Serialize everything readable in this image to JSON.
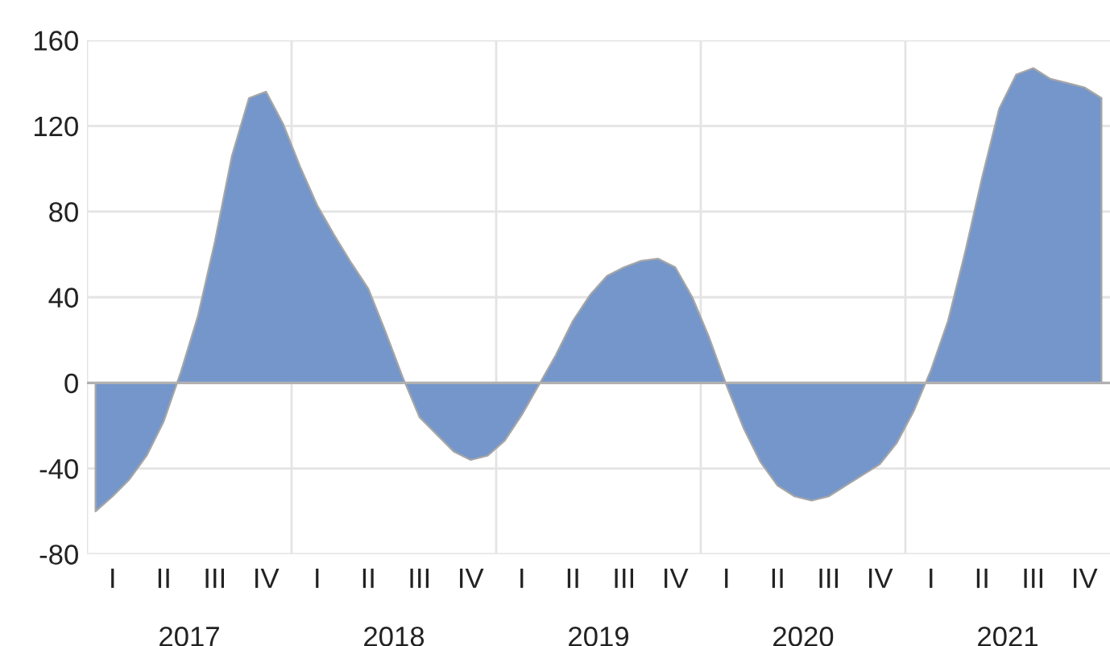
{
  "chart_data": {
    "type": "area",
    "categories": [
      null,
      "I",
      null,
      null,
      "II",
      null,
      null,
      "III",
      null,
      null,
      "IV",
      null,
      null,
      "I",
      null,
      null,
      "II",
      null,
      null,
      "III",
      null,
      null,
      "IV",
      null,
      null,
      "I",
      null,
      null,
      "II",
      null,
      null,
      "III",
      null,
      null,
      "IV",
      null,
      null,
      "I",
      null,
      null,
      "II",
      null,
      null,
      "III",
      null,
      null,
      "IV",
      null,
      null,
      "I",
      null,
      null,
      "II",
      null,
      null,
      "III",
      null,
      null,
      "IV",
      null
    ],
    "series": [
      {
        "color": "#7496cb",
        "values": [
          -60,
          -53,
          -45,
          -34,
          -18,
          5,
          31,
          66,
          106,
          133,
          136,
          121,
          101,
          83,
          69,
          56,
          44,
          24,
          3,
          -16,
          -24,
          -32,
          -36,
          -34,
          -27,
          -15,
          -1,
          13,
          29,
          41,
          50,
          54,
          57,
          58,
          54,
          40,
          21,
          -1,
          -21,
          -37,
          -48,
          -53,
          -55,
          -53,
          -48,
          -43,
          -38,
          -28,
          -13,
          6,
          29,
          61,
          96,
          128,
          144,
          147,
          142,
          140,
          138,
          133
        ]
      }
    ],
    "ylim": [
      -80,
      160
    ],
    "yticks": [
      -80,
      -40,
      0,
      40,
      80,
      120,
      160
    ],
    "grid": true,
    "ref_lines": [
      {
        "axis": "y",
        "value": 0,
        "color": "#b0b0b0"
      }
    ],
    "annotations": [
      "2017",
      "2018",
      "2019",
      "2020",
      "2021"
    ]
  }
}
